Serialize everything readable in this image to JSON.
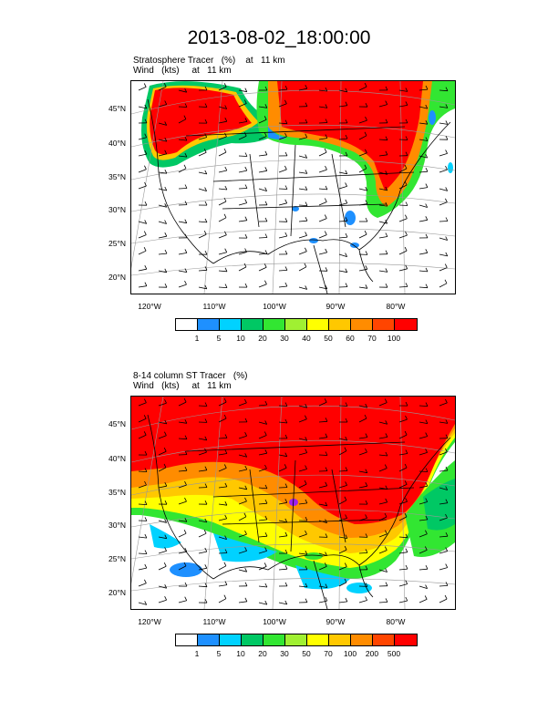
{
  "title": "2013-08-02_18:00:00",
  "panels": [
    {
      "title_line1": "Stratosphere Tracer   (%)    at   11 km",
      "title_line2": "Wind   (kts)     at   11 km",
      "lat_labels": [
        "45°N",
        "40°N",
        "35°N",
        "30°N",
        "25°N",
        "20°N"
      ],
      "lon_labels": [
        "120°W",
        "110°W",
        "100°W",
        "90°W",
        "80°W"
      ],
      "colorbar_labels": [
        "1",
        "5",
        "10",
        "20",
        "30",
        "40",
        "50",
        "60",
        "70",
        "100"
      ]
    },
    {
      "title_line1": "8-14 column ST Tracer   (%)",
      "title_line2": "Wind   (kts)     at   11 km",
      "lat_labels": [
        "45°N",
        "40°N",
        "35°N",
        "30°N",
        "25°N",
        "20°N"
      ],
      "lon_labels": [
        "120°W",
        "110°W",
        "100°W",
        "90°W",
        "80°W"
      ],
      "colorbar_labels": [
        "1",
        "5",
        "10",
        "20",
        "30",
        "50",
        "70",
        "100",
        "200",
        "500"
      ]
    }
  ],
  "colorbar_colors": [
    "#ffffff",
    "#1e90ff",
    "#00d2ff",
    "#00c864",
    "#32e632",
    "#a0f032",
    "#ffff00",
    "#ffc800",
    "#ff8c00",
    "#ff4500",
    "#ff0000"
  ]
}
